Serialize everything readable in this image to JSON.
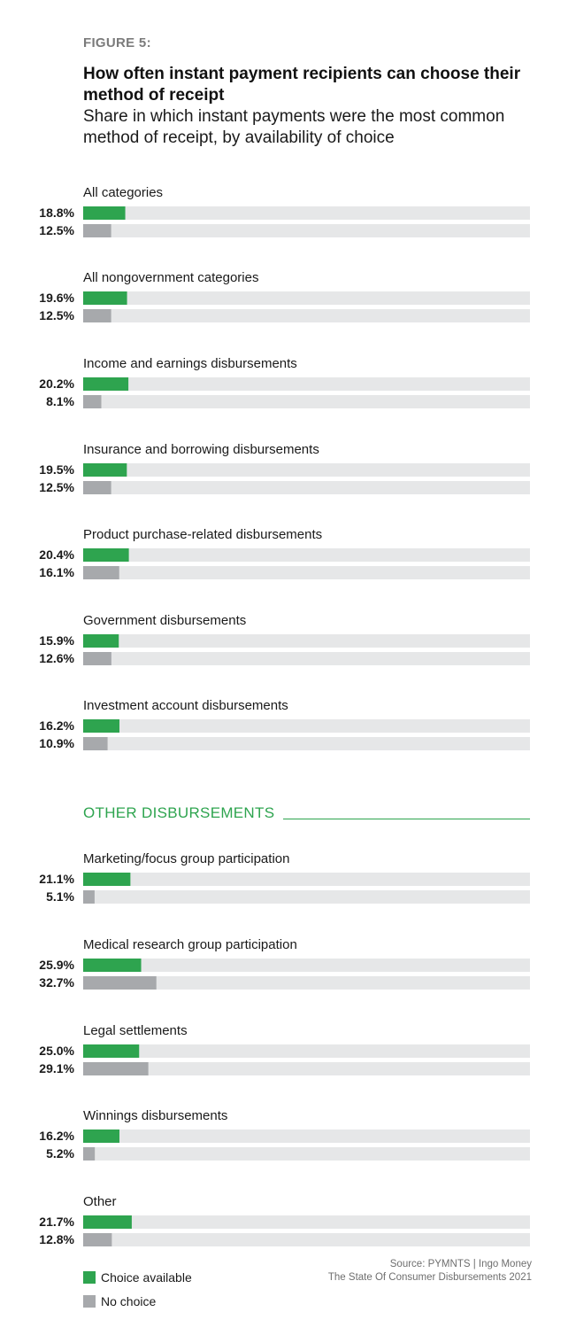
{
  "figure_label": "FIGURE 5:",
  "title": "How often instant payment recipients can choose their method of receipt",
  "subtitle": "Share in which instant payments were the most common method of receipt, by availability of choice",
  "section_heading": "OTHER DISBURSEMENTS",
  "legend": {
    "choice_label": "Choice available",
    "nochoice_label": "No choice"
  },
  "source": {
    "line1": "Source: PYMNTS  |  Ingo Money",
    "line2": "The State Of Consumer Disbursements 2021"
  },
  "colors": {
    "choice": "#2ea44f",
    "nochoice": "#a7a9ac",
    "track": "#e6e7e8",
    "section": "#2ea44f"
  },
  "chart_data": {
    "type": "bar",
    "orientation": "horizontal",
    "xlim": [
      0,
      100
    ],
    "unit": "%",
    "series": [
      {
        "name": "Choice available",
        "values": [
          18.8,
          19.6,
          20.2,
          19.5,
          20.4,
          15.9,
          16.2,
          21.1,
          25.9,
          25.0,
          16.2,
          21.7
        ]
      },
      {
        "name": "No choice",
        "values": [
          12.5,
          12.5,
          8.1,
          12.5,
          16.1,
          12.6,
          10.9,
          5.1,
          32.7,
          29.1,
          5.2,
          12.8
        ]
      }
    ],
    "categories": [
      "All categories",
      "All nongovernment categories",
      "Income and earnings disbursements",
      "Insurance and borrowing disbursements",
      "Product purchase-related disbursements",
      "Government disbursements",
      "Investment account disbursements",
      "Marketing/focus group participation",
      "Medical research group participation",
      "Legal settlements",
      "Winnings disbursements",
      "Other"
    ],
    "data_labels": {
      "choice": [
        "18.8%",
        "19.6%",
        "20.2%",
        "19.5%",
        "20.4%",
        "15.9%",
        "16.2%",
        "21.1%",
        "25.9%",
        "25.0%",
        "16.2%",
        "21.7%"
      ],
      "nochoice": [
        "12.5%",
        "12.5%",
        "8.1%",
        "12.5%",
        "16.1%",
        "12.6%",
        "10.9%",
        "5.1%",
        "32.7%",
        "29.1%",
        "5.2%",
        "12.8%"
      ]
    },
    "groups": [
      {
        "name": "",
        "category_indices": [
          0,
          1,
          2,
          3,
          4,
          5,
          6
        ]
      },
      {
        "name": "OTHER DISBURSEMENTS",
        "category_indices": [
          7,
          8,
          9,
          10,
          11
        ]
      }
    ]
  }
}
